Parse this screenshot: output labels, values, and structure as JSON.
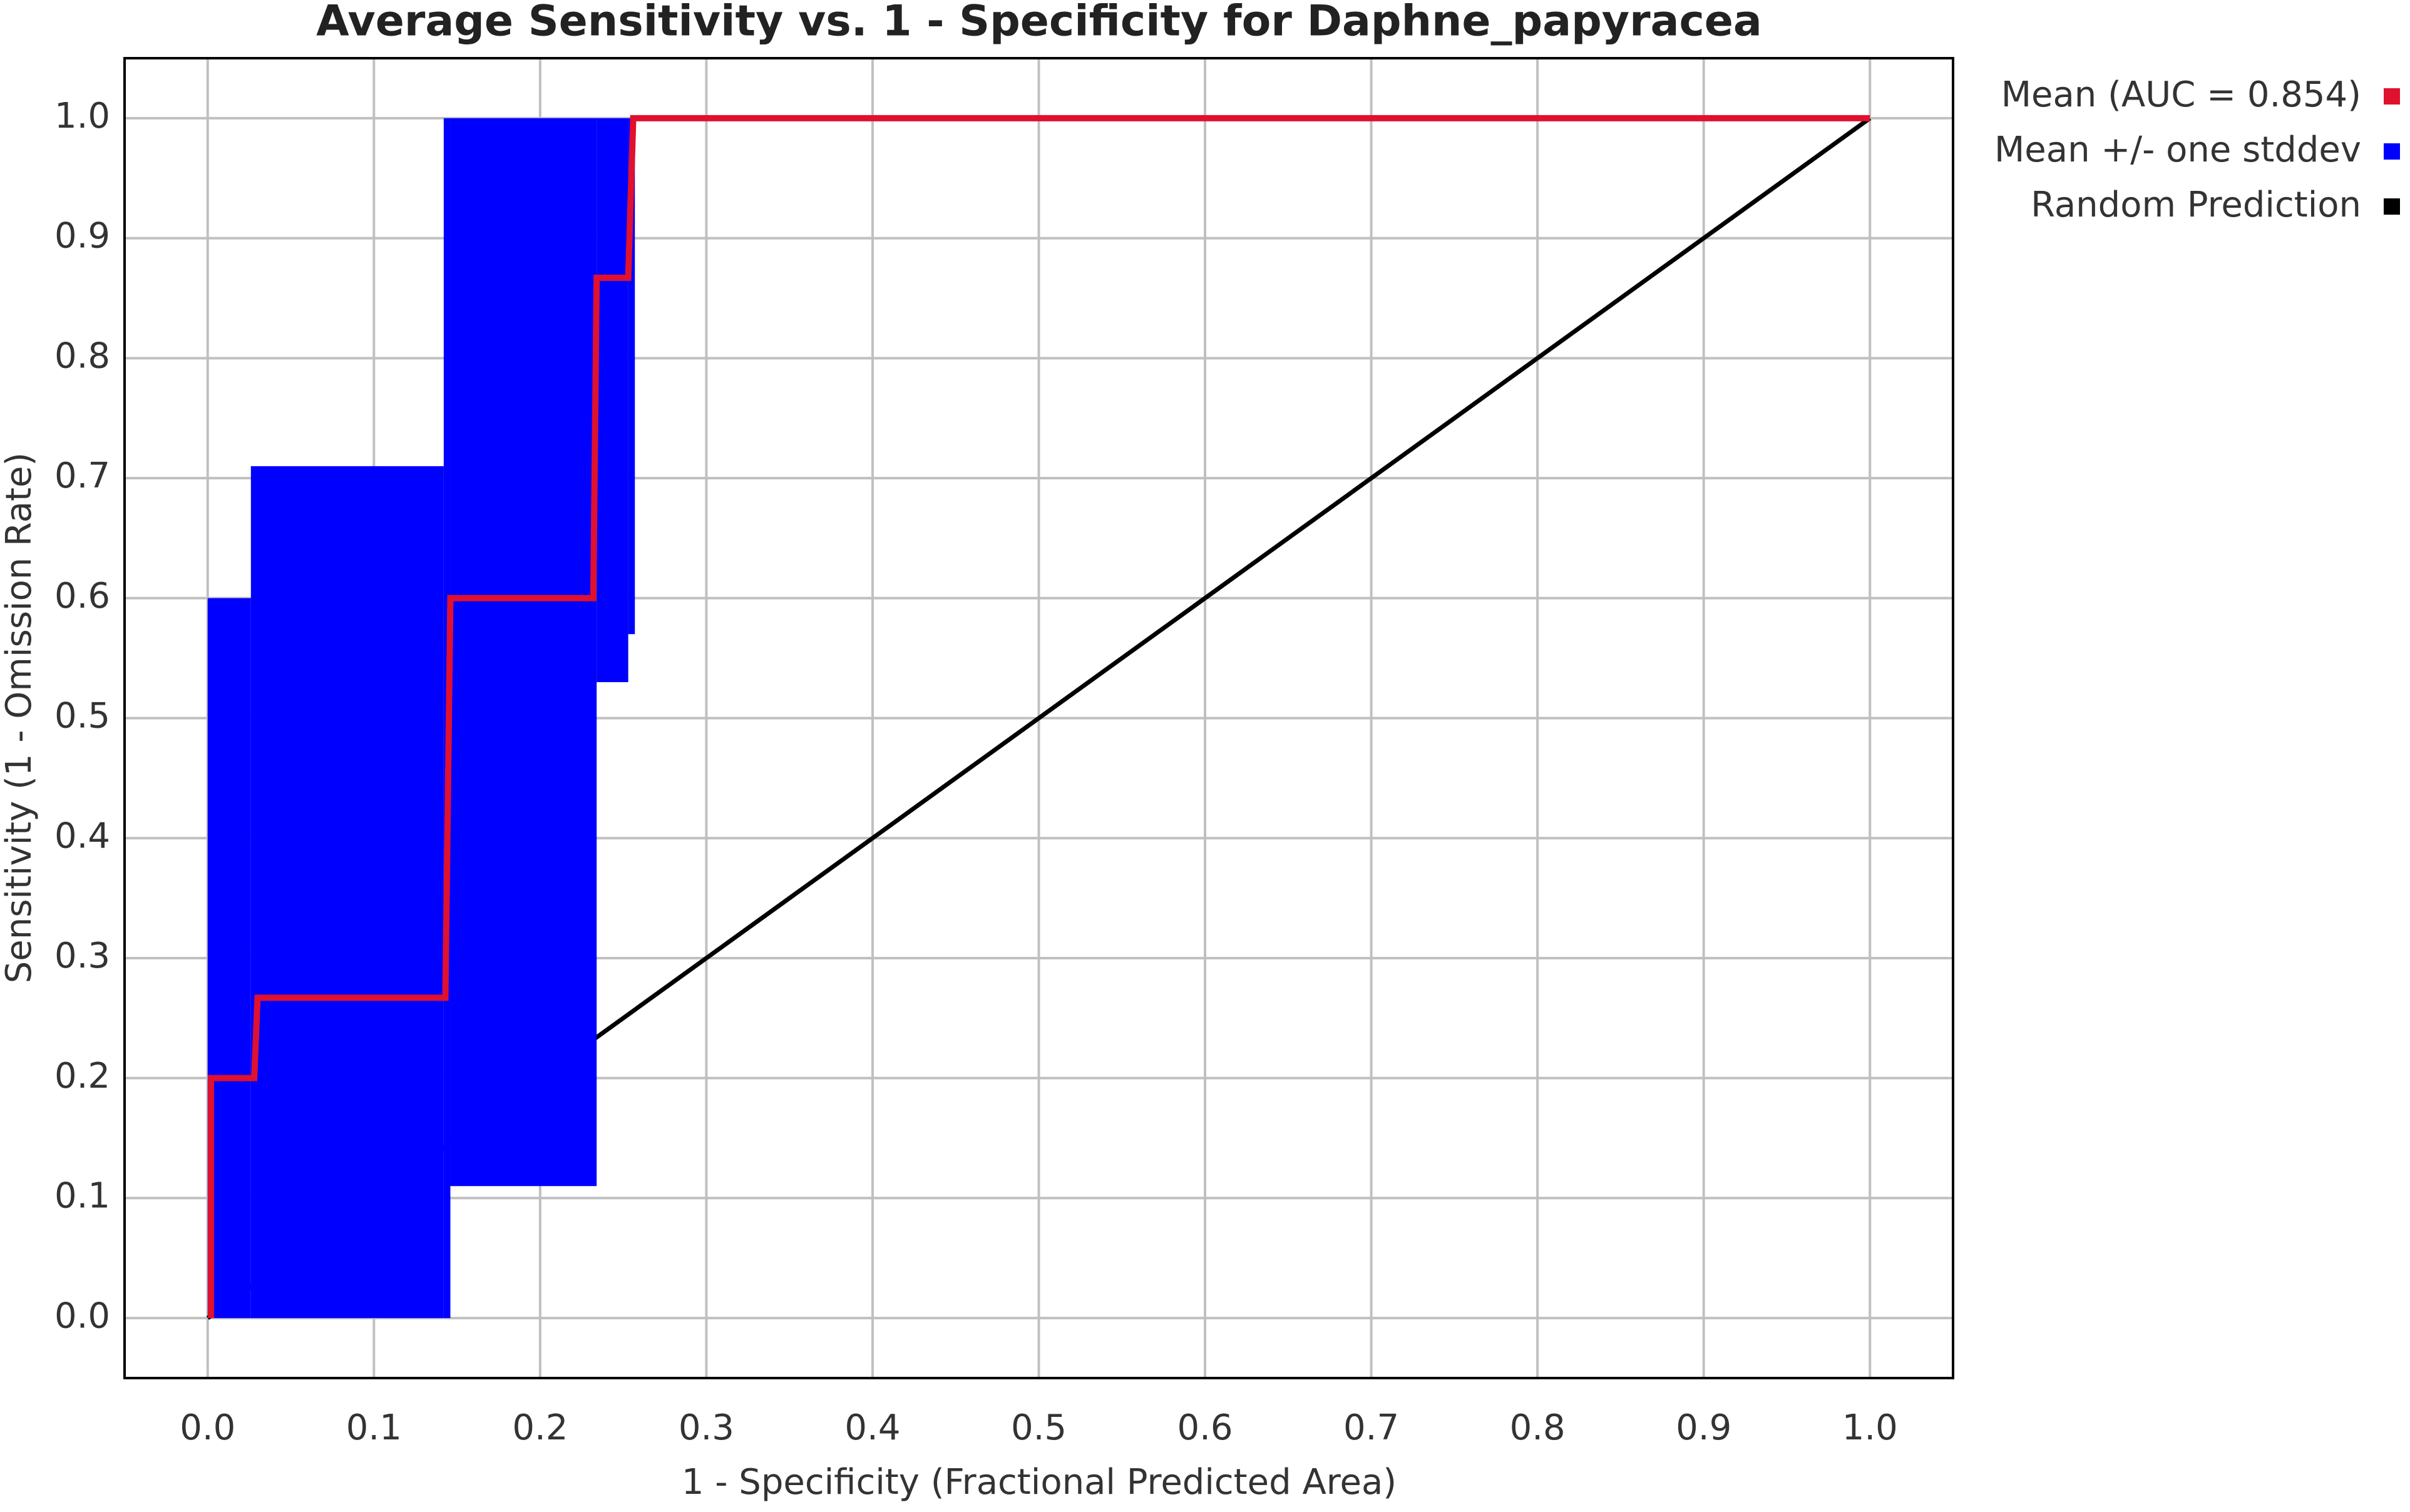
{
  "chart_data": {
    "type": "line",
    "title": "Average Sensitivity vs. 1 - Specificity for Daphne_papyracea",
    "x_label": "1 - Specificity (Fractional Predicted Area)",
    "y_label": "Sensitivity (1 - Omission Rate)",
    "xlim": [
      -0.05,
      1.05
    ],
    "ylim": [
      -0.05,
      1.05
    ],
    "xticks": [
      {
        "value": 0,
        "label": "0.0"
      },
      0.1,
      0.2,
      0.3,
      0.4,
      0.5,
      0.6,
      0.7,
      0.8,
      0.9,
      {
        "value": 1,
        "label": "1.0"
      }
    ],
    "yticks": [
      {
        "value": 0,
        "label": "0.0"
      },
      0.1,
      0.2,
      0.3,
      0.4,
      0.5,
      0.6,
      0.7,
      0.8,
      0.9,
      {
        "value": 1,
        "label": "1.0"
      }
    ],
    "grid": true,
    "legend": "right",
    "series": [
      {
        "name": "Mean (AUC = 0.854)",
        "color": "#e0102f",
        "x": [
          0.002,
          0.002,
          0.028,
          0.03,
          0.143,
          0.146,
          0.232,
          0.234,
          0.253,
          0.256,
          1.0
        ],
        "values": [
          0,
          0.2,
          0.2,
          0.267,
          0.267,
          0.6,
          0.6,
          0.867,
          0.867,
          1.0,
          1.0
        ]
      },
      {
        "name": "Mean +/- one stddev",
        "color": "#0000ff",
        "x_start": [
          0.0,
          0.026,
          0.142,
          0.146,
          0.234,
          0.253
        ],
        "x_end": [
          0.026,
          0.142,
          0.146,
          0.234,
          0.253,
          0.257
        ],
        "upper": [
          0.6,
          0.71,
          1.0,
          1.0,
          1.0,
          1.0
        ],
        "lower": [
          0,
          0,
          0,
          0.11,
          0.53,
          0.57
        ]
      },
      {
        "name": "Random Prediction",
        "color": "#000000",
        "x": [
          0,
          1
        ],
        "values": [
          0,
          1
        ]
      }
    ]
  }
}
